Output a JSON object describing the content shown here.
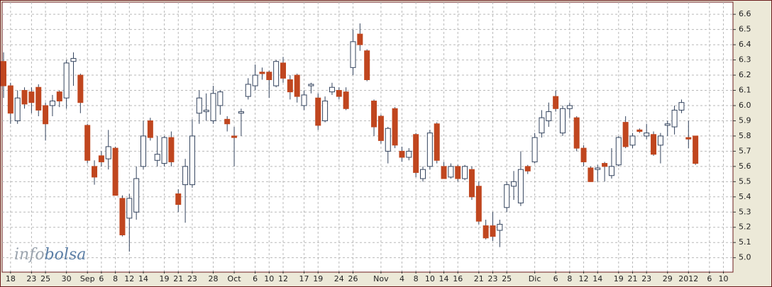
{
  "chart_data": {
    "type": "candlestick",
    "categories": [
      null,
      "18",
      null,
      null,
      "23",
      null,
      "25",
      null,
      null,
      "30",
      null,
      null,
      "Sep",
      null,
      "6",
      null,
      "8",
      null,
      "12",
      null,
      "14",
      null,
      null,
      "19",
      null,
      "21",
      null,
      "23",
      null,
      null,
      "28",
      null,
      null,
      "Oct",
      null,
      null,
      "6",
      null,
      "10",
      null,
      "12",
      null,
      null,
      "17",
      null,
      "19",
      null,
      null,
      "24",
      null,
      "26",
      null,
      null,
      null,
      "Nov",
      null,
      null,
      "4",
      null,
      "8",
      null,
      "10",
      null,
      "14",
      null,
      "16",
      null,
      null,
      "21",
      null,
      "23",
      null,
      "25",
      null,
      null,
      null,
      "Dic",
      null,
      null,
      "6",
      null,
      "8",
      null,
      "12",
      null,
      "14",
      null,
      null,
      "19",
      null,
      "21",
      null,
      "23",
      null,
      null,
      "29",
      null,
      null,
      "2012",
      null,
      null,
      "6",
      null,
      "10"
    ],
    "open": [
      6.29,
      6.13,
      5.9,
      6.1,
      6.09,
      6.12,
      6.0,
      6.0,
      6.09,
      6.05,
      6.29,
      6.2,
      5.87,
      5.6,
      5.67,
      5.65,
      5.72,
      5.39,
      5.26,
      5.3,
      5.6,
      5.9,
      5.64,
      5.62,
      5.79,
      5.42,
      5.48,
      5.48,
      5.95,
      5.96,
      5.9,
      6.0,
      5.91,
      5.8,
      5.95,
      6.06,
      6.13,
      6.22,
      6.22,
      6.13,
      6.28,
      6.17,
      6.2,
      6.0,
      6.13,
      6.05,
      5.9,
      6.09,
      6.1,
      6.09,
      6.25,
      6.47,
      6.36,
      6.03,
      5.93,
      5.7,
      5.98,
      5.7,
      5.66,
      5.81,
      5.52,
      5.6,
      5.88,
      5.6,
      5.53,
      5.6,
      5.52,
      5.58,
      5.47,
      5.21,
      5.21,
      5.18,
      5.33,
      5.47,
      5.36,
      5.6,
      5.63,
      5.82,
      5.9,
      6.06,
      5.82,
      5.98,
      5.92,
      5.72,
      5.59,
      5.58,
      5.62,
      5.54,
      5.61,
      5.89,
      5.74,
      5.84,
      5.8,
      5.81,
      5.74,
      5.87,
      5.86,
      5.97,
      5.79,
      5.8,
      null,
      null,
      null,
      null
    ],
    "high": [
      6.35,
      6.15,
      6.1,
      6.12,
      6.12,
      6.14,
      6.02,
      6.07,
      6.1,
      6.3,
      6.35,
      6.21,
      5.88,
      5.64,
      5.7,
      5.84,
      5.73,
      5.41,
      5.42,
      5.6,
      5.9,
      5.92,
      5.8,
      5.8,
      5.83,
      5.45,
      5.65,
      5.91,
      6.1,
      6.08,
      6.13,
      6.1,
      5.93,
      5.86,
      5.98,
      6.18,
      6.27,
      6.25,
      6.23,
      6.3,
      6.32,
      6.2,
      6.21,
      6.1,
      6.15,
      6.08,
      6.06,
      6.15,
      6.12,
      6.12,
      6.5,
      6.54,
      6.37,
      6.04,
      5.94,
      5.86,
      5.99,
      5.73,
      5.72,
      5.82,
      5.6,
      5.84,
      5.89,
      5.63,
      5.62,
      5.61,
      5.61,
      5.6,
      5.5,
      5.25,
      5.3,
      5.25,
      5.5,
      5.57,
      5.7,
      5.61,
      5.82,
      5.97,
      6.02,
      6.1,
      6.0,
      6.02,
      5.93,
      5.74,
      5.6,
      5.61,
      5.63,
      5.72,
      5.8,
      5.93,
      5.82,
      5.85,
      5.88,
      5.83,
      5.82,
      5.9,
      6.0,
      6.04,
      5.9,
      5.8,
      null,
      null,
      null,
      null
    ],
    "low": [
      6.05,
      5.88,
      5.88,
      5.98,
      5.95,
      5.93,
      5.77,
      5.93,
      5.99,
      5.98,
      6.13,
      5.95,
      5.62,
      5.48,
      5.6,
      5.58,
      5.41,
      5.14,
      5.04,
      5.25,
      5.58,
      5.77,
      5.6,
      5.6,
      5.6,
      5.3,
      5.23,
      5.46,
      5.88,
      5.9,
      5.88,
      5.94,
      5.83,
      5.6,
      5.8,
      6.04,
      6.1,
      6.17,
      6.05,
      6.12,
      6.15,
      6.04,
      6.02,
      5.97,
      6.08,
      5.84,
      5.89,
      6.07,
      6.04,
      5.97,
      6.2,
      6.36,
      6.16,
      5.8,
      5.75,
      5.62,
      5.72,
      5.63,
      5.64,
      5.53,
      5.5,
      5.58,
      5.62,
      5.52,
      5.52,
      5.5,
      5.51,
      5.38,
      5.22,
      5.12,
      5.11,
      5.07,
      5.3,
      5.38,
      5.34,
      5.55,
      5.62,
      5.79,
      5.86,
      5.96,
      5.8,
      5.92,
      5.7,
      5.6,
      5.5,
      5.5,
      5.5,
      5.52,
      5.6,
      5.72,
      5.72,
      5.82,
      5.78,
      5.67,
      5.62,
      5.8,
      5.81,
      5.95,
      5.72,
      5.61,
      null,
      null,
      null,
      null
    ],
    "close": [
      6.13,
      5.95,
      6.05,
      6.01,
      6.02,
      5.97,
      5.88,
      6.03,
      6.03,
      6.28,
      6.31,
      6.02,
      5.64,
      5.53,
      5.63,
      5.73,
      5.41,
      5.15,
      5.39,
      5.52,
      5.8,
      5.79,
      5.68,
      5.79,
      5.63,
      5.35,
      5.6,
      5.8,
      6.05,
      5.97,
      6.08,
      6.09,
      5.88,
      5.79,
      5.96,
      6.14,
      6.2,
      6.21,
      6.17,
      6.29,
      6.18,
      6.09,
      6.06,
      6.07,
      6.14,
      5.87,
      6.03,
      6.12,
      6.06,
      5.98,
      6.42,
      6.4,
      6.17,
      5.86,
      5.77,
      5.85,
      5.74,
      5.66,
      5.7,
      5.56,
      5.58,
      5.82,
      5.64,
      5.52,
      5.6,
      5.52,
      5.6,
      5.4,
      5.24,
      5.13,
      5.14,
      5.22,
      5.48,
      5.5,
      5.58,
      5.57,
      5.79,
      5.92,
      5.96,
      5.98,
      5.98,
      6.0,
      5.72,
      5.63,
      5.5,
      5.59,
      5.6,
      5.6,
      5.79,
      5.73,
      5.8,
      5.83,
      5.82,
      5.68,
      5.8,
      5.88,
      5.97,
      6.02,
      5.78,
      5.62,
      null,
      null,
      null,
      null
    ],
    "up_color": "#ffffff",
    "down_color": "#c0461f",
    "outline_color": "#34445e",
    "ylim": [
      4.91,
      6.68
    ],
    "yticks": [
      {
        "value": 5,
        "label": "5.0"
      },
      5.1,
      5.2,
      5.3,
      5.4,
      5.5,
      5.6,
      5.7,
      5.8,
      5.9,
      {
        "value": 6,
        "label": "6.0"
      },
      6.1,
      6.2,
      6.3,
      6.4,
      6.5,
      6.6
    ],
    "grid": true,
    "watermark": {
      "first": "info",
      "second": "bolsa"
    }
  }
}
